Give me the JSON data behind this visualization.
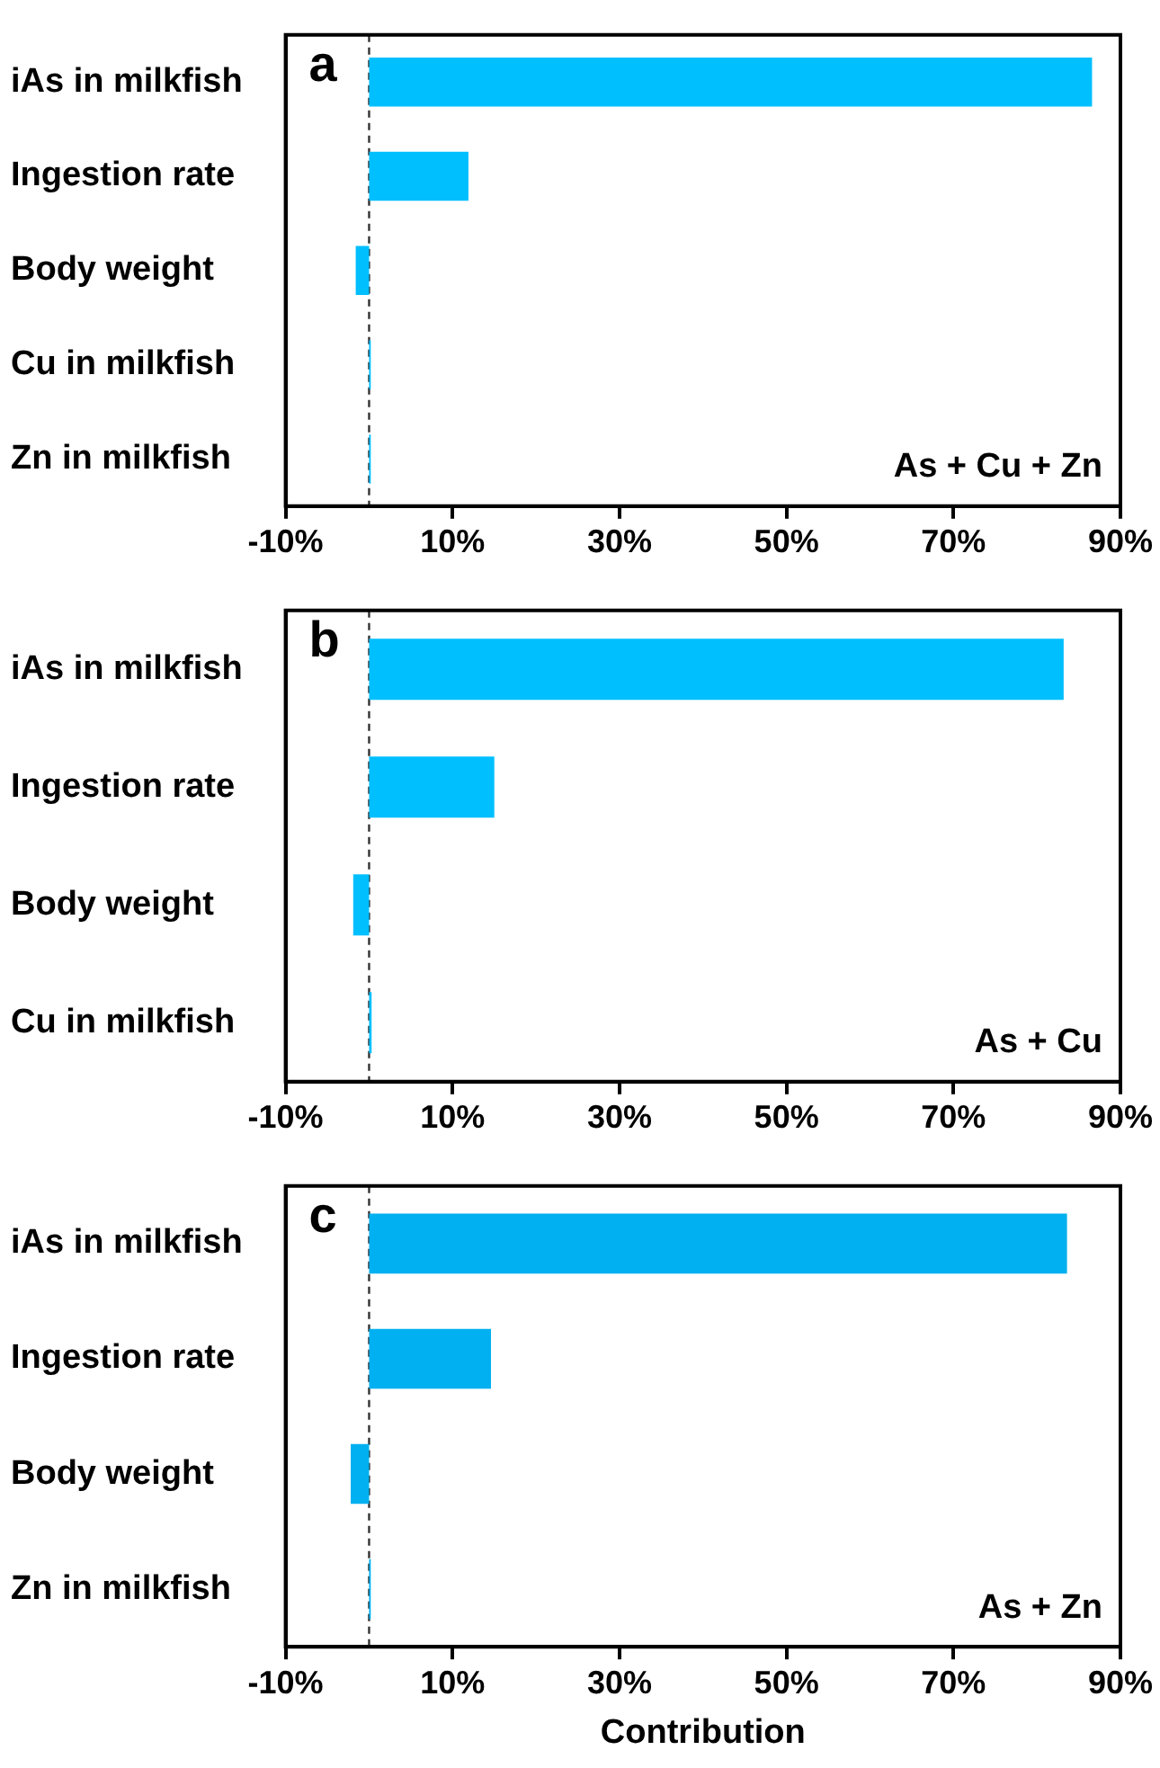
{
  "chart_data": [
    {
      "type": "bar",
      "orientation": "horizontal",
      "categories": [
        "iAs in milkfish",
        "Ingestion rate",
        "Body weight",
        "Cu in milkfish",
        "Zn in milkfish"
      ],
      "values": [
        86.6,
        11.9,
        -1.6,
        0.2,
        0.2
      ],
      "color": "#00bfff",
      "xlim": [
        -10,
        90
      ],
      "xticks": [
        {
          "value": -10,
          "label": "-10%"
        },
        {
          "value": 10,
          "label": "10%"
        },
        {
          "value": 30,
          "label": "30%"
        },
        {
          "value": 50,
          "label": "50%"
        },
        {
          "value": 70,
          "label": "70%"
        },
        {
          "value": 90,
          "label": "90%"
        }
      ],
      "ref_lines": [
        {
          "axis": "x",
          "value": 0,
          "line_style": "dashed"
        }
      ],
      "annotations": [
        "a",
        "As + Cu + Zn"
      ],
      "grid": false,
      "legend": false
    },
    {
      "type": "bar",
      "orientation": "horizontal",
      "categories": [
        "iAs in milkfish",
        "Ingestion rate",
        "Body weight",
        "Cu in milkfish"
      ],
      "values": [
        83.2,
        15.0,
        -1.9,
        0.3
      ],
      "color": "#00bfff",
      "xlim": [
        -10,
        90
      ],
      "xticks": [
        {
          "value": -10,
          "label": "-10%"
        },
        {
          "value": 10,
          "label": "10%"
        },
        {
          "value": 30,
          "label": "30%"
        },
        {
          "value": 50,
          "label": "50%"
        },
        {
          "value": 70,
          "label": "70%"
        },
        {
          "value": 90,
          "label": "90%"
        }
      ],
      "ref_lines": [
        {
          "axis": "x",
          "value": 0,
          "line_style": "dashed"
        }
      ],
      "annotations": [
        "b",
        "As + Cu"
      ],
      "grid": false,
      "legend": false
    },
    {
      "type": "bar",
      "orientation": "horizontal",
      "categories": [
        "iAs in milkfish",
        "Ingestion rate",
        "Body weight",
        "Zn in milkfish"
      ],
      "values": [
        83.6,
        14.6,
        -2.2,
        0.2
      ],
      "color": "#00b0f0",
      "xlim": [
        -10,
        90
      ],
      "xticks": [
        {
          "value": -10,
          "label": "-10%"
        },
        {
          "value": 10,
          "label": "10%"
        },
        {
          "value": 30,
          "label": "30%"
        },
        {
          "value": 50,
          "label": "50%"
        },
        {
          "value": 70,
          "label": "70%"
        },
        {
          "value": 90,
          "label": "90%"
        }
      ],
      "ref_lines": [
        {
          "axis": "x",
          "value": 0,
          "line_style": "dashed"
        }
      ],
      "annotations": [
        "c",
        "As + Zn"
      ],
      "xlabel": "Contribution",
      "grid": false,
      "legend": false
    }
  ]
}
